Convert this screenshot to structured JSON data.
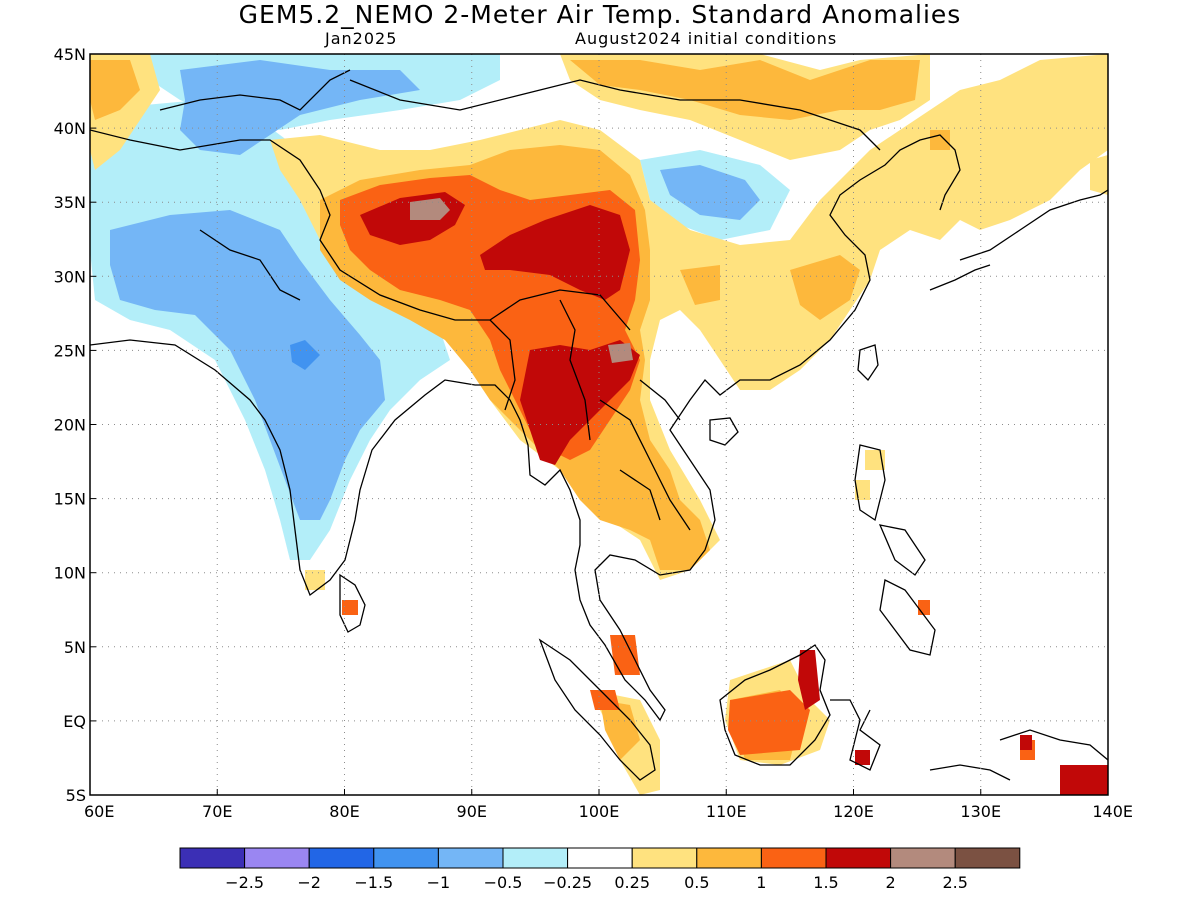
{
  "header": {
    "title": "GEM5.2_NEMO 2-Meter Air Temp. Standard Anomalies",
    "month": "Jan2025",
    "init": "August2024 initial conditions"
  },
  "axes": {
    "lat_labels": [
      "45N",
      "40N",
      "35N",
      "30N",
      "25N",
      "20N",
      "15N",
      "10N",
      "5N",
      "EQ",
      "5S"
    ],
    "lat_values": [
      45,
      40,
      35,
      30,
      25,
      20,
      15,
      10,
      5,
      0,
      -5
    ],
    "lon_labels": [
      "60E",
      "70E",
      "80E",
      "90E",
      "100E",
      "110E",
      "120E",
      "130E",
      "140E"
    ],
    "lon_values": [
      60,
      70,
      80,
      90,
      100,
      110,
      120,
      130,
      140
    ],
    "lon_range": [
      60,
      140
    ],
    "lat_range": [
      -5,
      45
    ]
  },
  "colorbar": {
    "colors": [
      "#3b2fb5",
      "#9a86f2",
      "#2266e6",
      "#4193f0",
      "#74b6f6",
      "#b3eef9",
      "#ffffff",
      "#ffe27f",
      "#fdb83c",
      "#fa6214",
      "#c10808",
      "#b38a7d",
      "#7b5142"
    ],
    "labels": [
      "-2.5",
      "-2",
      "-1.5",
      "-1",
      "-0.5",
      "-0.25",
      "0.25",
      "0.5",
      "1",
      "1.5",
      "2",
      "2.5"
    ]
  }
}
